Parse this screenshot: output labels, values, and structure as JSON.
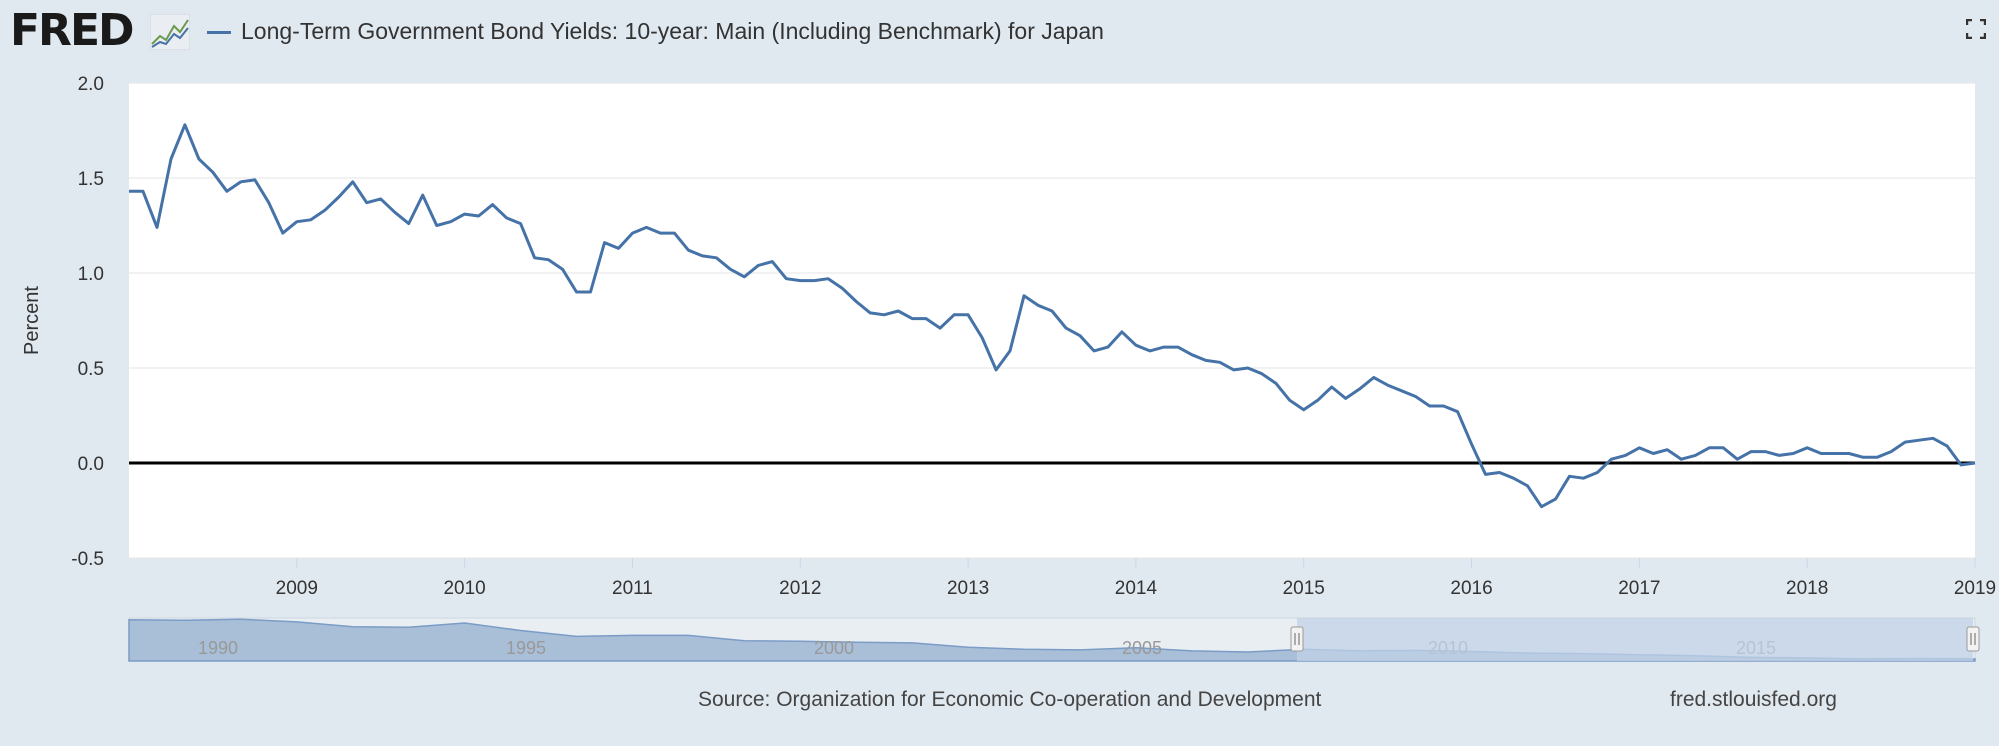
{
  "header": {
    "logo_text": "FRED",
    "title": "Long-Term Government Bond Yields: 10-year: Main (Including Benchmark) for Japan"
  },
  "footer": {
    "source": "Source: Organization for Economic Co-operation and Development",
    "url": "fred.stlouisfed.org"
  },
  "colors": {
    "series": "#4572a7",
    "background": "#e1e9f0",
    "plot_background": "#ffffff",
    "zero_line": "#000000",
    "navigator_fill": "#a9bfd8",
    "navigator_selection": "#c2d1e7"
  },
  "chart_data": {
    "type": "line",
    "title": "Long-Term Government Bond Yields: 10-year: Main (Including Benchmark) for Japan",
    "ylabel": "Percent",
    "xlabel": "",
    "ylim": [
      -0.5,
      2.0
    ],
    "yticks": [
      "-0.5",
      "0.0",
      "0.5",
      "1.0",
      "1.5",
      "2.0"
    ],
    "xlim": [
      "2008-01",
      "2019-01"
    ],
    "xticks": [
      "2009",
      "2010",
      "2011",
      "2012",
      "2013",
      "2014",
      "2015",
      "2016",
      "2017",
      "2018",
      "2019"
    ],
    "grid": true,
    "x": [
      "2008-01",
      "2008-02",
      "2008-03",
      "2008-04",
      "2008-05",
      "2008-06",
      "2008-07",
      "2008-08",
      "2008-09",
      "2008-10",
      "2008-11",
      "2008-12",
      "2009-01",
      "2009-02",
      "2009-03",
      "2009-04",
      "2009-05",
      "2009-06",
      "2009-07",
      "2009-08",
      "2009-09",
      "2009-10",
      "2009-11",
      "2009-12",
      "2010-01",
      "2010-02",
      "2010-03",
      "2010-04",
      "2010-05",
      "2010-06",
      "2010-07",
      "2010-08",
      "2010-09",
      "2010-10",
      "2010-11",
      "2010-12",
      "2011-01",
      "2011-02",
      "2011-03",
      "2011-04",
      "2011-05",
      "2011-06",
      "2011-07",
      "2011-08",
      "2011-09",
      "2011-10",
      "2011-11",
      "2011-12",
      "2012-01",
      "2012-02",
      "2012-03",
      "2012-04",
      "2012-05",
      "2012-06",
      "2012-07",
      "2012-08",
      "2012-09",
      "2012-10",
      "2012-11",
      "2012-12",
      "2013-01",
      "2013-02",
      "2013-03",
      "2013-04",
      "2013-05",
      "2013-06",
      "2013-07",
      "2013-08",
      "2013-09",
      "2013-10",
      "2013-11",
      "2013-12",
      "2014-01",
      "2014-02",
      "2014-03",
      "2014-04",
      "2014-05",
      "2014-06",
      "2014-07",
      "2014-08",
      "2014-09",
      "2014-10",
      "2014-11",
      "2014-12",
      "2015-01",
      "2015-02",
      "2015-03",
      "2015-04",
      "2015-05",
      "2015-06",
      "2015-07",
      "2015-08",
      "2015-09",
      "2015-10",
      "2015-11",
      "2015-12",
      "2016-01",
      "2016-02",
      "2016-03",
      "2016-04",
      "2016-05",
      "2016-06",
      "2016-07",
      "2016-08",
      "2016-09",
      "2016-10",
      "2016-11",
      "2016-12",
      "2017-01",
      "2017-02",
      "2017-03",
      "2017-04",
      "2017-05",
      "2017-06",
      "2017-07",
      "2017-08",
      "2017-09",
      "2017-10",
      "2017-11",
      "2017-12",
      "2018-01",
      "2018-02",
      "2018-03",
      "2018-04",
      "2018-05",
      "2018-06",
      "2018-07",
      "2018-08",
      "2018-09",
      "2018-10",
      "2018-11",
      "2018-12",
      "2019-01"
    ],
    "series": [
      {
        "values": [
          1.43,
          1.43,
          1.24,
          1.6,
          1.78,
          1.6,
          1.53,
          1.43,
          1.48,
          1.49,
          1.37,
          1.21,
          1.27,
          1.28,
          1.33,
          1.4,
          1.48,
          1.37,
          1.39,
          1.32,
          1.26,
          1.41,
          1.25,
          1.27,
          1.31,
          1.3,
          1.36,
          1.29,
          1.26,
          1.08,
          1.07,
          1.02,
          0.9,
          0.9,
          1.16,
          1.13,
          1.21,
          1.24,
          1.21,
          1.21,
          1.12,
          1.09,
          1.08,
          1.02,
          0.98,
          1.04,
          1.06,
          0.97,
          0.96,
          0.96,
          0.97,
          0.92,
          0.85,
          0.79,
          0.78,
          0.8,
          0.76,
          0.76,
          0.71,
          0.78,
          0.78,
          0.66,
          0.49,
          0.59,
          0.88,
          0.83,
          0.8,
          0.71,
          0.67,
          0.59,
          0.61,
          0.69,
          0.62,
          0.59,
          0.61,
          0.61,
          0.57,
          0.54,
          0.53,
          0.49,
          0.5,
          0.47,
          0.42,
          0.33,
          0.28,
          0.33,
          0.4,
          0.34,
          0.39,
          0.45,
          0.41,
          0.38,
          0.35,
          0.3,
          0.3,
          0.27,
          0.1,
          -0.06,
          -0.05,
          -0.08,
          -0.12,
          -0.23,
          -0.19,
          -0.07,
          -0.08,
          -0.05,
          0.02,
          0.04,
          0.08,
          0.05,
          0.07,
          0.02,
          0.04,
          0.08,
          0.08,
          0.02,
          0.06,
          0.06,
          0.04,
          0.05,
          0.08,
          0.05,
          0.05,
          0.05,
          0.03,
          0.03,
          0.06,
          0.11,
          0.12,
          0.13,
          0.09,
          -0.01,
          0.0
        ]
      }
    ],
    "navigator": {
      "labels": [
        "1990",
        "1995",
        "2000",
        "2005",
        "2010",
        "2015"
      ],
      "overview_values": [
        7.3,
        7.2,
        7.4,
        6.9,
        6.0,
        5.9,
        6.7,
        5.3,
        4.2,
        4.4,
        4.4,
        3.4,
        3.3,
        3.1,
        3.0,
        2.2,
        1.8,
        1.7,
        2.1,
        1.5,
        1.3,
        1.8,
        1.5,
        1.6,
        1.4,
        1.1,
        1.0,
        0.8,
        0.6,
        0.3,
        0.2,
        0.0,
        0.1,
        0.0
      ]
    }
  }
}
